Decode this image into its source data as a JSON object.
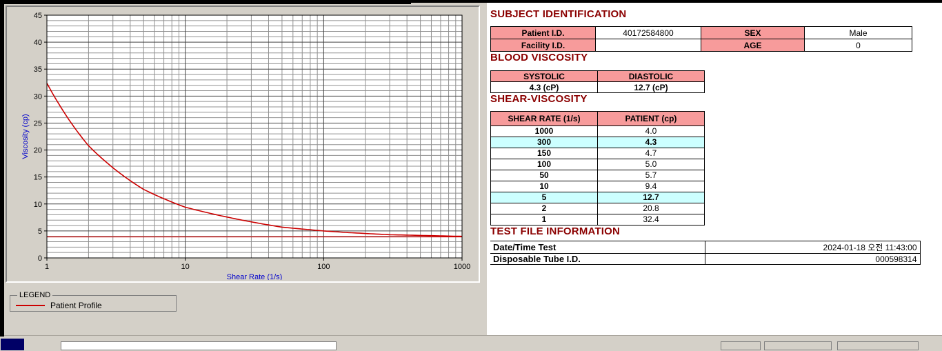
{
  "colors": {
    "header_pink": "#f79b9b",
    "highlight_cyan": "#ccffff",
    "heading_maroon": "#8b0000",
    "curve_red": "#cc0000",
    "axis_blue": "#0000cc"
  },
  "chart_data": {
    "type": "line",
    "title": "",
    "xlabel": "Shear Rate (1/s)",
    "ylabel": "Viscosity (cp)",
    "x_scale": "log",
    "xlim": [
      1,
      1000
    ],
    "ylim": [
      0,
      45
    ],
    "x_ticks": [
      1,
      10,
      100,
      1000
    ],
    "y_ticks": [
      0,
      5,
      10,
      15,
      20,
      25,
      30,
      35,
      40,
      45
    ],
    "grid": "on",
    "legend_position": "below-left",
    "series": [
      {
        "name": "Patient Profile",
        "color": "#cc0000",
        "x": [
          1,
          2,
          5,
          10,
          50,
          100,
          150,
          300,
          1000
        ],
        "y": [
          32.4,
          20.8,
          12.7,
          9.4,
          5.7,
          5.0,
          4.7,
          4.3,
          4.0
        ]
      }
    ],
    "baseline": 3.9
  },
  "legend": {
    "title": "LEGEND",
    "entries": [
      {
        "label": "Patient Profile",
        "color": "#cc0000"
      }
    ]
  },
  "subject": {
    "heading": "SUBJECT IDENTIFICATION",
    "patient_id_label": "Patient I.D.",
    "patient_id": "40172584800",
    "sex_label": "SEX",
    "sex": "Male",
    "facility_id_label": "Facility I.D.",
    "facility_id": "",
    "age_label": "AGE",
    "age": "0"
  },
  "blood_viscosity": {
    "heading": "BLOOD VISCOSITY",
    "systolic_label": "SYSTOLIC",
    "diastolic_label": "DIASTOLIC",
    "systolic": "4.3 (cP)",
    "diastolic": "12.7 (cP)"
  },
  "shear": {
    "heading": "SHEAR-VISCOSITY",
    "col1": "SHEAR RATE (1/s)",
    "col2": "PATIENT (cp)",
    "rows": [
      {
        "rate": "1000",
        "value": "4.0"
      },
      {
        "rate": "300",
        "value": "4.3"
      },
      {
        "rate": "150",
        "value": "4.7"
      },
      {
        "rate": "100",
        "value": "5.0"
      },
      {
        "rate": "50",
        "value": "5.7"
      },
      {
        "rate": "10",
        "value": "9.4"
      },
      {
        "rate": "5",
        "value": "12.7"
      },
      {
        "rate": "2",
        "value": "20.8"
      },
      {
        "rate": "1",
        "value": "32.4"
      }
    ]
  },
  "test_file": {
    "heading": "TEST FILE INFORMATION",
    "date_label": "Date/Time Test",
    "date_value": "2024-01-18  오전 11:43:00",
    "tube_label": "Disposable Tube I.D.",
    "tube_value": "000598314"
  }
}
